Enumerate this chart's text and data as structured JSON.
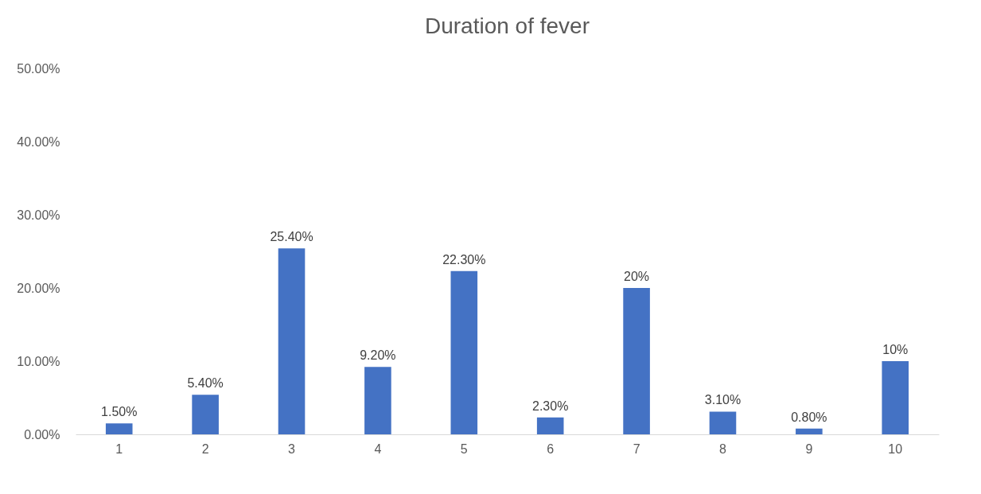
{
  "chart_data": {
    "type": "bar",
    "title": "Duration of fever",
    "categories": [
      "1",
      "2",
      "3",
      "4",
      "5",
      "6",
      "7",
      "8",
      "9",
      "10"
    ],
    "values": [
      1.5,
      5.4,
      25.4,
      9.2,
      22.3,
      2.3,
      20,
      3.1,
      0.8,
      10
    ],
    "value_labels": [
      "1.50%",
      "5.40%",
      "25.40%",
      "9.20%",
      "22.30%",
      "2.30%",
      "20%",
      "3.10%",
      "0.80%",
      "10%"
    ],
    "color": "#4472c4",
    "ylim": [
      0,
      50
    ],
    "yticks": [
      {
        "value": 0,
        "label": "0.00%"
      },
      {
        "value": 10,
        "label": "10.00%"
      },
      {
        "value": 20,
        "label": "20.00%"
      },
      {
        "value": 30,
        "label": "30.00%"
      },
      {
        "value": 40,
        "label": "40.00%"
      },
      {
        "value": 50,
        "label": "50.00%"
      }
    ],
    "grid": false
  }
}
